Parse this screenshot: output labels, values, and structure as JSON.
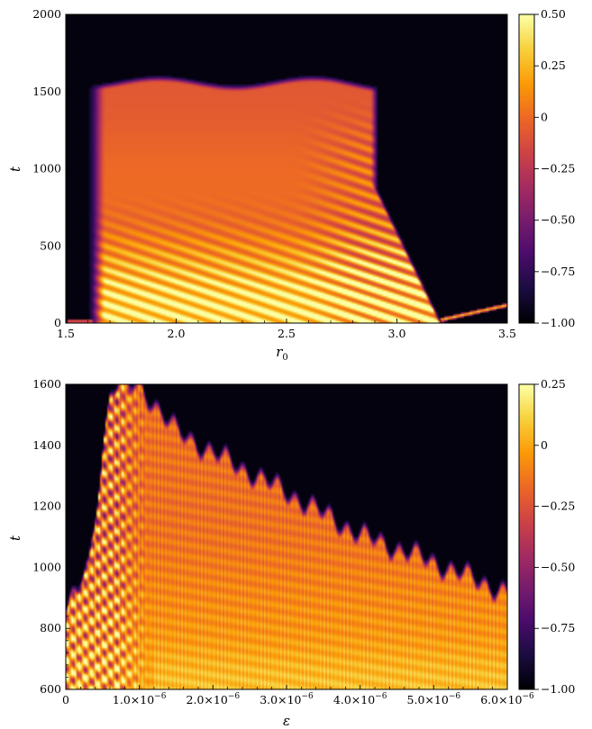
{
  "colors": {
    "colormap": "inferno",
    "stops": [
      "#000004",
      "#1b0c41",
      "#4a0c6b",
      "#781c6d",
      "#a52c60",
      "#cf4446",
      "#ed6925",
      "#fb9b06",
      "#f7d13d",
      "#fcffa4"
    ]
  },
  "chart_data": [
    {
      "type": "heatmap",
      "title": "",
      "xlabel": "r",
      "xlabel_sub": "0",
      "ylabel": "t",
      "xlim": [
        1.5,
        3.5
      ],
      "ylim": [
        0,
        2000
      ],
      "x_ticks": [
        {
          "value": 1.5,
          "label": "1.5"
        },
        {
          "value": 2.0,
          "label": "2.0"
        },
        {
          "value": 2.5,
          "label": "2.5"
        },
        {
          "value": 3.0,
          "label": "3.0"
        },
        {
          "value": 3.5,
          "label": "3.5"
        }
      ],
      "y_ticks": [
        {
          "value": 0,
          "label": "0"
        },
        {
          "value": 500,
          "label": "500"
        },
        {
          "value": 1000,
          "label": "1000"
        },
        {
          "value": 1500,
          "label": "1500"
        },
        {
          "value": 2000,
          "label": "2000"
        }
      ],
      "colorbar": {
        "range": [
          -1.0,
          0.5
        ],
        "ticks": [
          {
            "value": 0.5,
            "label": "0.50"
          },
          {
            "value": 0.25,
            "label": "0.25"
          },
          {
            "value": 0,
            "label": "0"
          },
          {
            "value": -0.25,
            "label": "−0.25"
          },
          {
            "value": -0.5,
            "label": "−0.50"
          },
          {
            "value": -0.75,
            "label": "−0.75"
          },
          {
            "value": -1.0,
            "label": "−1.00"
          }
        ]
      },
      "regions": {
        "active_r_start": 1.6,
        "active_r_end": 2.88,
        "active_t_end": 1560,
        "striped_tail_r_end": 3.2,
        "far_tail_r": [
          3.2,
          3.5
        ],
        "far_tail_t": [
          15,
          110
        ]
      }
    },
    {
      "type": "heatmap",
      "title": "",
      "xlabel": "ε",
      "ylabel": "t",
      "xlim": [
        0,
        6e-06
      ],
      "ylim": [
        600,
        1600
      ],
      "x_ticks": [
        {
          "value": 0,
          "label": "0",
          "mant": "0",
          "exp": ""
        },
        {
          "value": 1e-06,
          "label": "1.0×10−6",
          "mant": "1.0×10",
          "exp": "−6"
        },
        {
          "value": 2e-06,
          "label": "2.0×10−6",
          "mant": "2.0×10",
          "exp": "−6"
        },
        {
          "value": 3e-06,
          "label": "3.0×10−6",
          "mant": "3.0×10",
          "exp": "−6"
        },
        {
          "value": 4e-06,
          "label": "4.0×10−6",
          "mant": "4.0×10",
          "exp": "−6"
        },
        {
          "value": 5e-06,
          "label": "5.0×10−6",
          "mant": "5.0×10",
          "exp": "−6"
        },
        {
          "value": 6e-06,
          "label": "6.0×10−6",
          "mant": "6.0×10",
          "exp": "−6"
        }
      ],
      "y_ticks": [
        {
          "value": 600,
          "label": "600"
        },
        {
          "value": 800,
          "label": "800"
        },
        {
          "value": 1000,
          "label": "1000"
        },
        {
          "value": 1200,
          "label": "1200"
        },
        {
          "value": 1400,
          "label": "1400"
        },
        {
          "value": 1600,
          "label": "1600"
        }
      ],
      "colorbar": {
        "range": [
          -1.0,
          0.25
        ],
        "ticks": [
          {
            "value": 0.25,
            "label": "0.25"
          },
          {
            "value": 0,
            "label": "0"
          },
          {
            "value": -0.25,
            "label": "−0.25"
          },
          {
            "value": -0.5,
            "label": "−0.50"
          },
          {
            "value": -0.75,
            "label": "−0.75"
          },
          {
            "value": -1.0,
            "label": "−1.00"
          }
        ]
      },
      "front": [
        {
          "eps": 0,
          "t": 860
        },
        {
          "eps": 3e-07,
          "t": 1000
        },
        {
          "eps": 6e-07,
          "t": 1600
        },
        {
          "eps": 1e-06,
          "t": 1600
        },
        {
          "eps": 1.5e-06,
          "t": 1450
        },
        {
          "eps": 2e-06,
          "t": 1380
        },
        {
          "eps": 3e-06,
          "t": 1250
        },
        {
          "eps": 4e-06,
          "t": 1110
        },
        {
          "eps": 5e-06,
          "t": 1020
        },
        {
          "eps": 6e-06,
          "t": 920
        }
      ]
    }
  ]
}
